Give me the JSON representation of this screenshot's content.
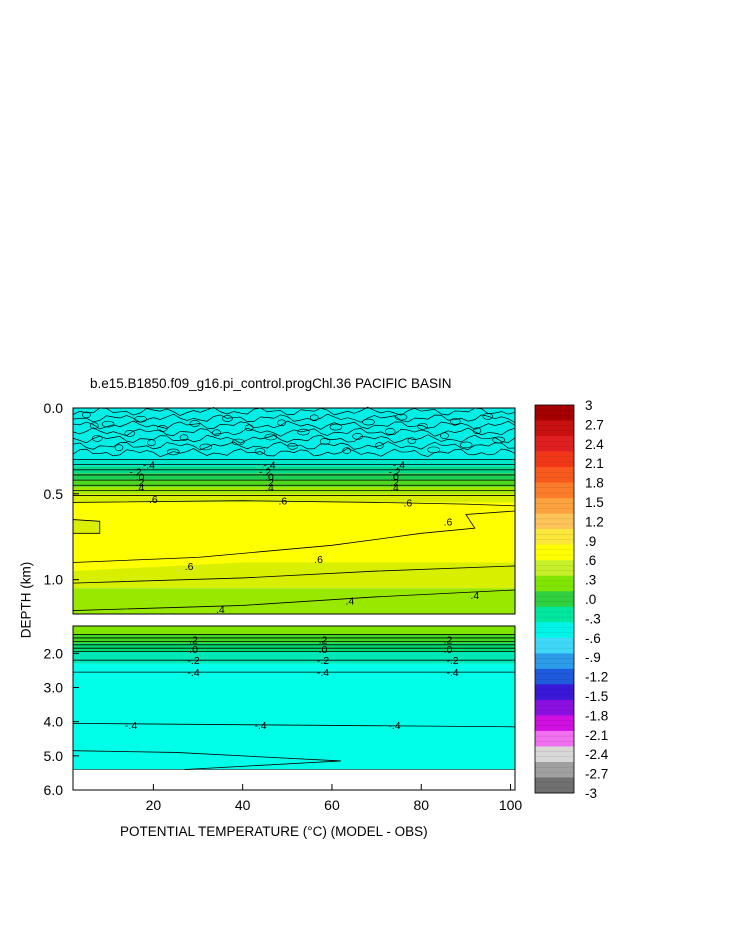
{
  "chart_data": {
    "type": "contour",
    "title": "b.e15.B1850.f09_g16.pi_control.progChl.36 PACIFIC BASIN",
    "xlabel": "POTENTIAL TEMPERATURE (°C) (MODEL - OBS)",
    "ylabel": "DEPTH (km)",
    "xlim": [
      2,
      101
    ],
    "x_ticks": [
      20,
      40,
      60,
      80,
      100
    ],
    "panels": [
      {
        "name": "upper",
        "ylim": [
          0.0,
          1.2
        ],
        "y_ticks": [
          "0.0",
          "0.5",
          "1.0"
        ],
        "y_tick_values": [
          0.0,
          0.5,
          1.0
        ],
        "contour_labels": [
          {
            "text": "-.4",
            "x": 19,
            "y": 0.33
          },
          {
            "text": "-.4",
            "x": 46,
            "y": 0.33
          },
          {
            "text": "-.4",
            "x": 75,
            "y": 0.33
          },
          {
            "text": "-.2",
            "x": 16,
            "y": 0.37
          },
          {
            "text": "-.2",
            "x": 45,
            "y": 0.37
          },
          {
            "text": "-.2",
            "x": 74,
            "y": 0.37
          },
          {
            "text": ".0",
            "x": 17,
            "y": 0.4
          },
          {
            "text": ".0",
            "x": 46,
            "y": 0.4
          },
          {
            "text": ".0",
            "x": 74,
            "y": 0.4
          },
          {
            "text": ".2",
            "x": 17,
            "y": 0.43
          },
          {
            "text": ".2",
            "x": 46,
            "y": 0.43
          },
          {
            "text": ".2",
            "x": 74,
            "y": 0.43
          },
          {
            "text": ".4",
            "x": 17,
            "y": 0.46
          },
          {
            "text": ".4",
            "x": 46,
            "y": 0.46
          },
          {
            "text": ".4",
            "x": 74,
            "y": 0.46
          },
          {
            "text": ".6",
            "x": 20,
            "y": 0.53
          },
          {
            "text": ".6",
            "x": 49,
            "y": 0.54
          },
          {
            "text": ".6",
            "x": 77,
            "y": 0.55
          },
          {
            "text": ".6",
            "x": 86,
            "y": 0.66
          },
          {
            "text": ".6",
            "x": 28,
            "y": 0.92
          },
          {
            "text": ".6",
            "x": 57,
            "y": 0.88
          },
          {
            "text": ".4",
            "x": 35,
            "y": 1.17
          },
          {
            "text": ".4",
            "x": 64,
            "y": 1.12
          },
          {
            "text": ".4",
            "x": 92,
            "y": 1.09
          }
        ]
      },
      {
        "name": "lower",
        "ylim": [
          1.2,
          6.0
        ],
        "y_ticks": [
          "2.0",
          "3.0",
          "4.0",
          "5.0",
          "6.0"
        ],
        "y_tick_values": [
          2.0,
          3.0,
          4.0,
          5.0,
          6.0
        ],
        "contour_labels": [
          {
            "text": ".2",
            "x": 29,
            "y": 1.6
          },
          {
            "text": ".2",
            "x": 58,
            "y": 1.6
          },
          {
            "text": ".2",
            "x": 86,
            "y": 1.6
          },
          {
            "text": ".0",
            "x": 29,
            "y": 1.88
          },
          {
            "text": ".0",
            "x": 58,
            "y": 1.88
          },
          {
            "text": ".0",
            "x": 86,
            "y": 1.88
          },
          {
            "text": "-.2",
            "x": 29,
            "y": 2.2
          },
          {
            "text": "-.2",
            "x": 58,
            "y": 2.2
          },
          {
            "text": "-.2",
            "x": 87,
            "y": 2.2
          },
          {
            "text": "-.4",
            "x": 29,
            "y": 2.55
          },
          {
            "text": "-.4",
            "x": 58,
            "y": 2.55
          },
          {
            "text": "-.4",
            "x": 87,
            "y": 2.55
          },
          {
            "text": "-.4",
            "x": 15,
            "y": 4.1
          },
          {
            "text": "-.4",
            "x": 44,
            "y": 4.1
          },
          {
            "text": "-.4",
            "x": 74,
            "y": 4.1
          }
        ]
      }
    ],
    "colorbar": {
      "labels": [
        "3",
        "2.7",
        "2.4",
        "2.1",
        "1.8",
        "1.5",
        "1.2",
        ".9",
        ".6",
        ".3",
        ".0",
        "-.3",
        "-.6",
        "-.9",
        "-1.2",
        "-1.5",
        "-1.8",
        "-2.1",
        "-2.4",
        "-2.7",
        "-3"
      ],
      "values": [
        3.0,
        2.7,
        2.4,
        2.1,
        1.8,
        1.5,
        1.2,
        0.9,
        0.6,
        0.3,
        0.0,
        -0.3,
        -0.6,
        -0.9,
        -1.2,
        -1.5,
        -1.8,
        -2.1,
        -2.4,
        -2.7,
        -3.0
      ],
      "colors": [
        "#a50000",
        "#c81010",
        "#e02020",
        "#f03818",
        "#f85a1e",
        "#fb7d2c",
        "#fca23e",
        "#fdc45a",
        "#fce83a",
        "#ffff00",
        "#c8f02a",
        "#80e600",
        "#30d040",
        "#00e8a0",
        "#00f5e8",
        "#40d8f8",
        "#2c9ce8",
        "#1e5adc",
        "#3a18d8",
        "#8a10e0",
        "#d010e0",
        "#f070f0",
        "#d8d8d8",
        "#a0a0a0",
        "#707070"
      ]
    }
  }
}
